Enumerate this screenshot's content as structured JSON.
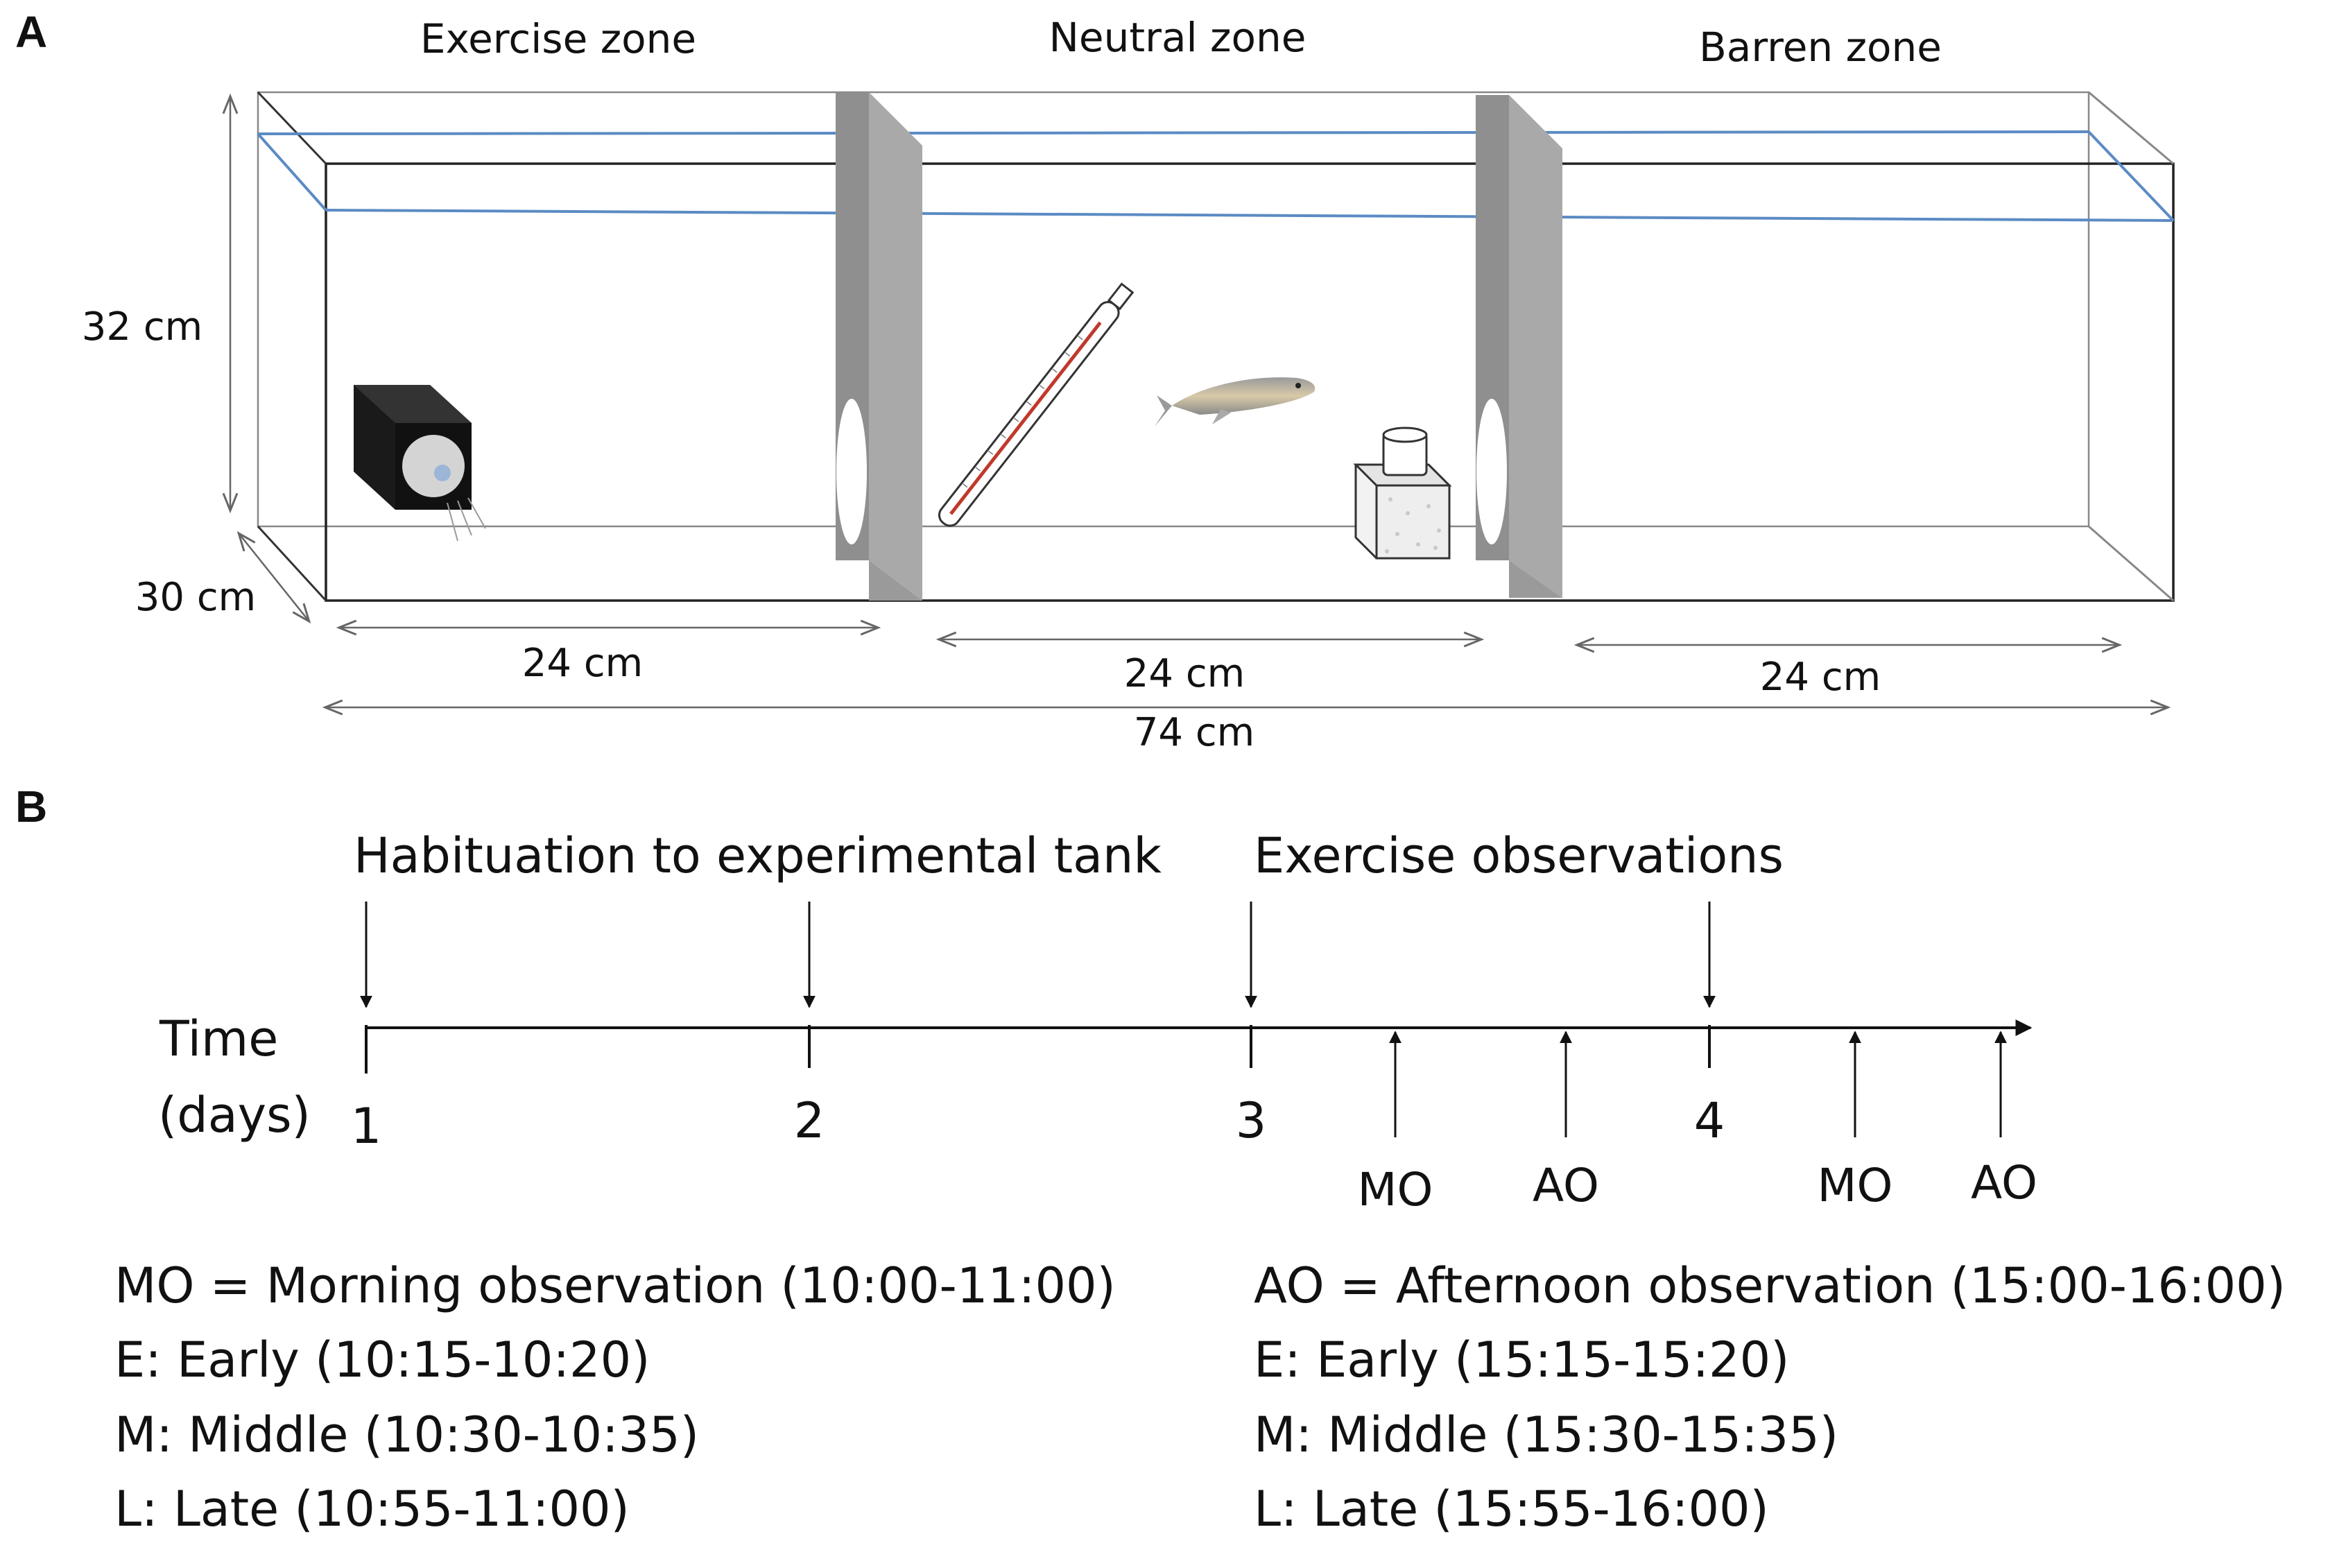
{
  "panel_a": {
    "label": "A",
    "zones": [
      "Exercise zone",
      "Neutral zone",
      "Barren zone"
    ],
    "dimensions": {
      "height": "32 cm",
      "depth": "30 cm",
      "zone_width_1": "24 cm",
      "zone_width_2": "24 cm",
      "zone_width_3": "24 cm",
      "total_length": "74 cm"
    },
    "colors": {
      "water_line": "#5b8bc4",
      "divider": "#a9a9a9",
      "divider_shade": "#8c8c8c",
      "thermometer_red": "#c0392b"
    },
    "icons": [
      "pump-icon",
      "thermometer-icon",
      "fish-icon",
      "heater-icon"
    ]
  },
  "panel_b": {
    "label": "B",
    "phase_habituation": "Habituation to experimental tank",
    "phase_exercise": "Exercise observations",
    "axis_label_line1": "Time",
    "axis_label_line2": "(days)",
    "days": [
      "1",
      "2",
      "3",
      "4"
    ],
    "observations": [
      "MO",
      "AO",
      "MO",
      "AO"
    ],
    "legend_left": [
      "MO = Morning observation (10:00-11:00)",
      "E: Early (10:15-10:20)",
      "M: Middle (10:30-10:35)",
      "L: Late (10:55-11:00)"
    ],
    "legend_right": [
      "AO = Afternoon observation (15:00-16:00)",
      "E: Early (15:15-15:20)",
      "M: Middle (15:30-15:35)",
      "L: Late (15:55-16:00)"
    ]
  }
}
